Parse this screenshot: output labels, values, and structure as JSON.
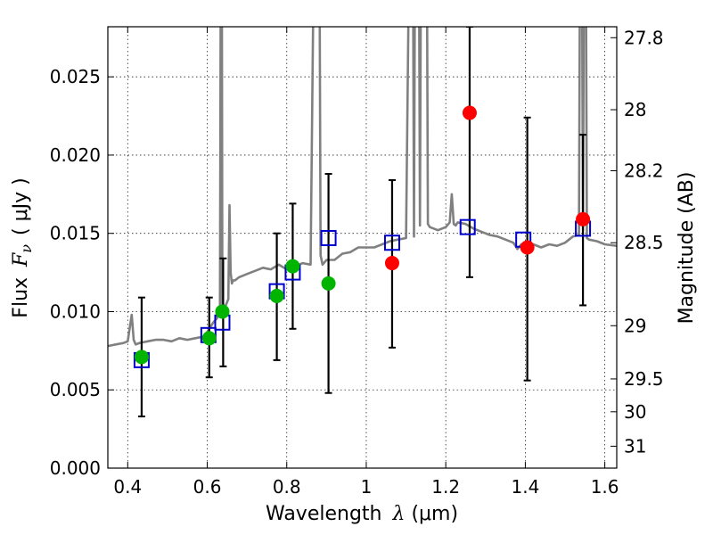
{
  "chart_data": {
    "type": "scatter",
    "xlabel": "Wavelength",
    "xlabel_symbol": "λ",
    "xlabel_unit": "(μm)",
    "ylabel": "Flux",
    "ylabel_symbol": "F",
    "ylabel_subscript": "ν",
    "ylabel_unit": "( μJy )",
    "y2label": "Magnitude (AB)",
    "xlim": [
      0.35,
      1.63
    ],
    "ylim": [
      0.0,
      0.0282
    ],
    "grid": true,
    "xticks": [
      0.4,
      0.6,
      0.8,
      1.0,
      1.2,
      1.4,
      1.6
    ],
    "xtick_labels": [
      "0.4",
      "0.6",
      "0.8",
      "1",
      "1.2",
      "1.4",
      "1.6"
    ],
    "yticks": [
      0.0,
      0.005,
      0.01,
      0.015,
      0.02,
      0.025
    ],
    "ytick_labels": [
      "0.000",
      "0.005",
      "0.010",
      "0.015",
      "0.020",
      "0.025"
    ],
    "y2ticks": [
      {
        "label": "27.8",
        "flux": 0.0275
      },
      {
        "label": "28",
        "flux": 0.0229
      },
      {
        "label": "28.2",
        "flux": 0.019
      },
      {
        "label": "28.5",
        "flux": 0.0144
      },
      {
        "label": "29",
        "flux": 0.0091
      },
      {
        "label": "29.5",
        "flux": 0.0057
      },
      {
        "label": "30",
        "flux": 0.0036
      },
      {
        "label": "31",
        "flux": 0.0014
      }
    ],
    "spectrum": {
      "color": "#808080",
      "x": [
        0.35,
        0.37,
        0.39,
        0.4,
        0.41,
        0.415,
        0.42,
        0.43,
        0.45,
        0.47,
        0.49,
        0.51,
        0.53,
        0.55,
        0.57,
        0.59,
        0.6,
        0.615,
        0.625,
        0.632,
        0.6355,
        0.638,
        0.645,
        0.653,
        0.656,
        0.659,
        0.662,
        0.665,
        0.67,
        0.68,
        0.7,
        0.72,
        0.74,
        0.76,
        0.78,
        0.8,
        0.82,
        0.84,
        0.86,
        0.875,
        0.88,
        0.885,
        0.89,
        0.9,
        0.92,
        0.94,
        0.96,
        0.98,
        1.0,
        1.02,
        1.04,
        1.06,
        1.08,
        1.1,
        1.115,
        1.12,
        1.125,
        1.13,
        1.135,
        1.14,
        1.145,
        1.15,
        1.155,
        1.16,
        1.18,
        1.2,
        1.21,
        1.215,
        1.22,
        1.225,
        1.23,
        1.25,
        1.27,
        1.29,
        1.31,
        1.33,
        1.35,
        1.37,
        1.38,
        1.39,
        1.4,
        1.42,
        1.44,
        1.46,
        1.48,
        1.5,
        1.52,
        1.535,
        1.54,
        1.545,
        1.55,
        1.555,
        1.56,
        1.58,
        1.6,
        1.63
      ],
      "y": [
        0.0078,
        0.0079,
        0.008,
        0.0081,
        0.0098,
        0.0082,
        0.0079,
        0.008,
        0.0081,
        0.0082,
        0.0082,
        0.0081,
        0.0083,
        0.0082,
        0.0083,
        0.0084,
        0.0087,
        0.0093,
        0.0096,
        0.0104,
        0.05,
        0.0105,
        0.0103,
        0.0108,
        0.0168,
        0.0125,
        0.0118,
        0.012,
        0.012,
        0.0122,
        0.0124,
        0.0126,
        0.0128,
        0.0127,
        0.013,
        0.0127,
        0.0129,
        0.0131,
        0.013,
        0.05,
        0.05,
        0.0136,
        0.013,
        0.0133,
        0.0133,
        0.0137,
        0.0138,
        0.0141,
        0.0141,
        0.0141,
        0.0143,
        0.0145,
        0.0146,
        0.0147,
        0.05,
        0.0148,
        0.05,
        0.05,
        0.0155,
        0.05,
        0.05,
        0.05,
        0.0156,
        0.0154,
        0.0152,
        0.0154,
        0.0157,
        0.0175,
        0.0156,
        0.0155,
        0.0157,
        0.0156,
        0.0153,
        0.0151,
        0.0149,
        0.0148,
        0.0146,
        0.0144,
        0.014,
        0.0143,
        0.0142,
        0.0143,
        0.0141,
        0.0143,
        0.0142,
        0.0144,
        0.0148,
        0.0149,
        0.05,
        0.0152,
        0.05,
        0.0147,
        0.0146,
        0.0145,
        0.0143,
        0.0142
      ]
    },
    "open_squares": {
      "color": "#0000cc",
      "points": [
        {
          "x": 0.435,
          "y": 0.0069
        },
        {
          "x": 0.603,
          "y": 0.0085
        },
        {
          "x": 0.638,
          "y": 0.0093
        },
        {
          "x": 0.775,
          "y": 0.0113
        },
        {
          "x": 0.815,
          "y": 0.0125
        },
        {
          "x": 0.905,
          "y": 0.0147
        },
        {
          "x": 1.065,
          "y": 0.0144
        },
        {
          "x": 1.255,
          "y": 0.0154
        },
        {
          "x": 1.395,
          "y": 0.0146
        },
        {
          "x": 1.545,
          "y": 0.0153
        }
      ]
    },
    "green_points": {
      "color": "#00b400",
      "points": [
        {
          "x": 0.435,
          "y": 0.0071
        },
        {
          "x": 0.605,
          "y": 0.0083
        },
        {
          "x": 0.638,
          "y": 0.01
        },
        {
          "x": 0.775,
          "y": 0.011
        },
        {
          "x": 0.815,
          "y": 0.0129
        },
        {
          "x": 0.905,
          "y": 0.0118
        }
      ]
    },
    "red_points": {
      "color": "#ff0000",
      "points": [
        {
          "x": 1.065,
          "y": 0.0131
        },
        {
          "x": 1.26,
          "y": 0.0227
        },
        {
          "x": 1.405,
          "y": 0.0141
        },
        {
          "x": 1.545,
          "y": 0.0159
        }
      ]
    },
    "error_bars": {
      "color": "#000000",
      "bars": [
        {
          "x": 0.435,
          "low": 0.0033,
          "high": 0.0109
        },
        {
          "x": 0.605,
          "low": 0.0058,
          "high": 0.0109
        },
        {
          "x": 0.64,
          "low": 0.0065,
          "high": 0.0134
        },
        {
          "x": 0.775,
          "low": 0.0069,
          "high": 0.015
        },
        {
          "x": 0.815,
          "low": 0.0089,
          "high": 0.0169
        },
        {
          "x": 0.905,
          "low": 0.0048,
          "high": 0.0188
        },
        {
          "x": 1.065,
          "low": 0.0077,
          "high": 0.0184
        },
        {
          "x": 1.26,
          "low": 0.0122,
          "high": 0.0282
        },
        {
          "x": 1.405,
          "low": 0.0056,
          "high": 0.0224
        },
        {
          "x": 1.545,
          "low": 0.0104,
          "high": 0.0213
        }
      ]
    }
  }
}
